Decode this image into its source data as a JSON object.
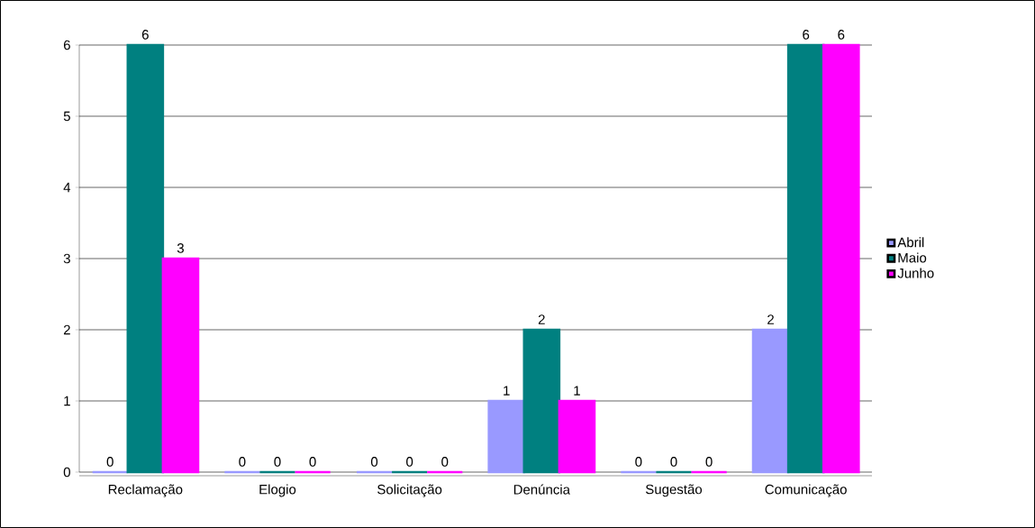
{
  "chart_data": {
    "type": "bar",
    "categories": [
      "Reclamação",
      "Elogio",
      "Solicitação",
      "Denúncia",
      "Sugestão",
      "Comunicação"
    ],
    "series": [
      {
        "name": "Abril",
        "color": "#9999ff",
        "values": [
          0,
          0,
          0,
          1,
          0,
          2
        ]
      },
      {
        "name": "Maio",
        "color": "#008080",
        "values": [
          6,
          0,
          0,
          2,
          0,
          6
        ]
      },
      {
        "name": "Junho",
        "color": "#ff00ff",
        "values": [
          3,
          0,
          0,
          1,
          0,
          6
        ]
      }
    ],
    "ylim": [
      0,
      6
    ],
    "yticks": [
      0,
      1,
      2,
      3,
      4,
      5,
      6
    ],
    "grid": "y",
    "legend": "right",
    "data_labels": true
  }
}
